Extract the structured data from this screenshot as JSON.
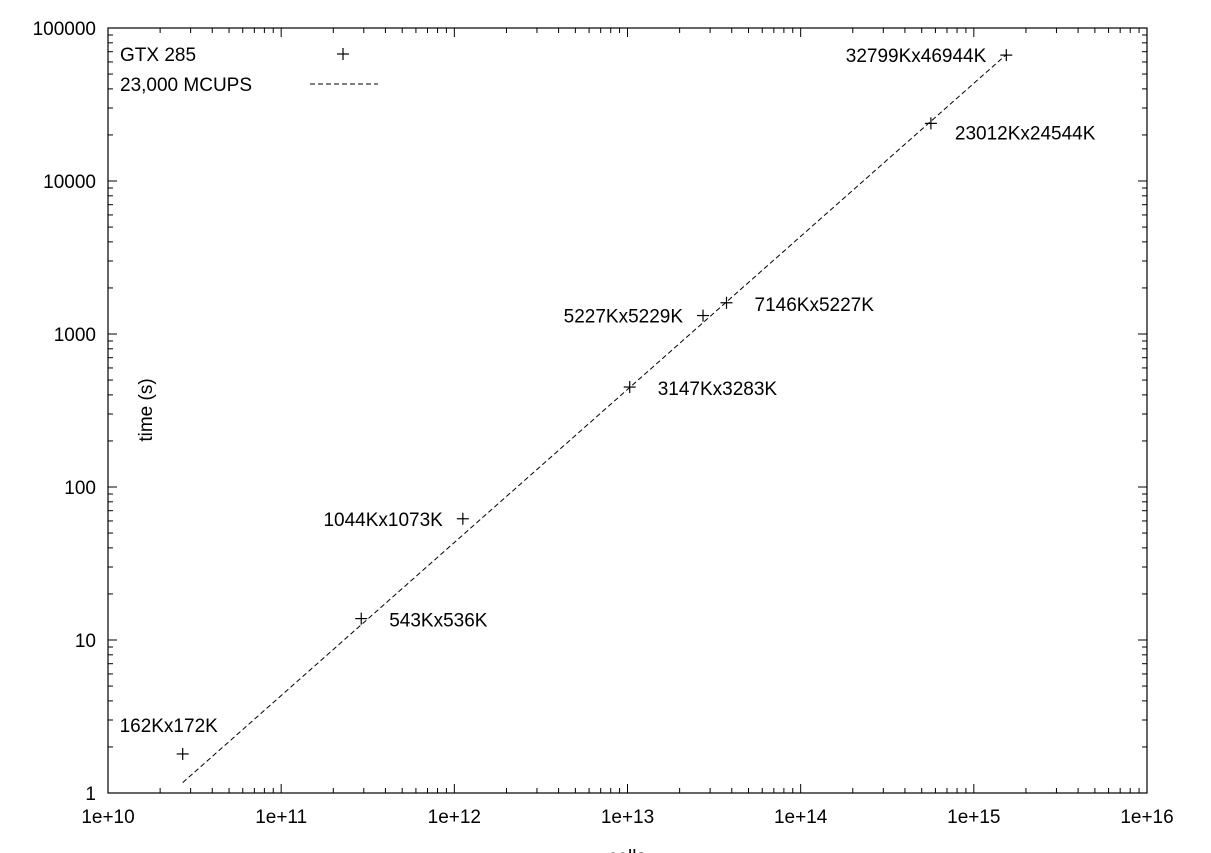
{
  "chart_data": {
    "type": "scatter",
    "title": "",
    "xlabel": "cells",
    "ylabel": "time (s)",
    "xscale": "log",
    "yscale": "log",
    "xlim": [
      10000000000.0,
      1e+16
    ],
    "ylim": [
      1,
      100000
    ],
    "grid": false,
    "legend_position": "top-left",
    "x_tick_labels": [
      "1e+10",
      "1e+11",
      "1e+12",
      "1e+13",
      "1e+14",
      "1e+15",
      "1e+16"
    ],
    "y_tick_labels": [
      "1",
      "10",
      "100",
      "1000",
      "10000",
      "100000"
    ],
    "series": [
      {
        "name": "GTX 285",
        "kind": "points",
        "marker": "+",
        "color": "#000000",
        "points": [
          {
            "x": 27000000000.0,
            "y": 1.8,
            "label": "162Kx172K",
            "label_side": "above"
          },
          {
            "x": 290000000000.0,
            "y": 13.8,
            "label": "543Kx536K",
            "label_side": "right"
          },
          {
            "x": 1120000000000.0,
            "y": 62,
            "label": "1044Kx1073K",
            "label_side": "left"
          },
          {
            "x": 10300000000000.0,
            "y": 450,
            "label": "3147Kx3283K",
            "label_side": "right"
          },
          {
            "x": 27300000000000.0,
            "y": 1320,
            "label": "5227Kx5229K",
            "label_side": "left"
          },
          {
            "x": 37300000000000.0,
            "y": 1600,
            "label": "7146Kx5227K",
            "label_side": "right"
          },
          {
            "x": 565000000000000.0,
            "y": 23800,
            "label": "23012Kx24544K",
            "label_side": "right-below"
          },
          {
            "x": 1540000000000000.0,
            "y": 66500,
            "label": "32799Kx46944K",
            "label_side": "left"
          }
        ]
      },
      {
        "name": "23,000 MCUPS",
        "kind": "line",
        "dash": "dashed",
        "color": "#000000",
        "points": [
          {
            "x": 27000000000.0,
            "y": 1.17
          },
          {
            "x": 1540000000000000.0,
            "y": 67000
          }
        ]
      }
    ]
  }
}
